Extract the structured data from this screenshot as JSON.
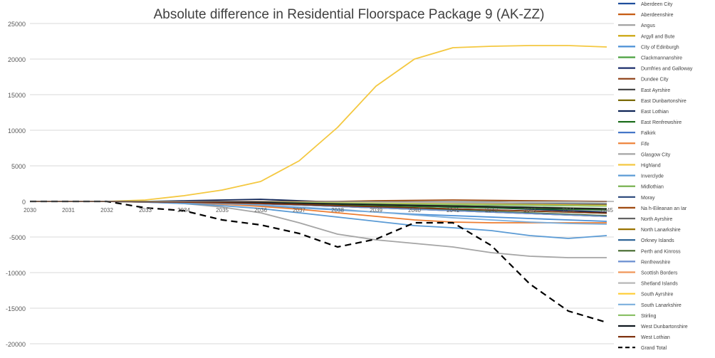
{
  "chart_data": {
    "type": "line",
    "title": "Absolute difference in Residential Floorspace Package 9 (AK-ZZ)",
    "xlabel": "",
    "ylabel": "",
    "x": [
      "2030",
      "2031",
      "2032",
      "2033",
      "2034",
      "2035",
      "2036",
      "2037",
      "2038",
      "2039",
      "2040",
      "2041",
      "2042",
      "2043",
      "2044",
      "2045"
    ],
    "ylim": [
      -20000,
      25000
    ],
    "yticks": [
      25000,
      20000,
      15000,
      10000,
      5000,
      0,
      -5000,
      -10000,
      -15000,
      -20000
    ],
    "grid": true,
    "legend_position": "right",
    "series": [
      {
        "name": "Aberdeen City",
        "color": "#1f4e9c",
        "values": [
          0,
          0,
          0,
          0,
          -100,
          -150,
          -200,
          -250,
          -300,
          -350,
          -400,
          -450,
          -500,
          -550,
          -600,
          -650
        ]
      },
      {
        "name": "Aberdeenshire",
        "color": "#c55a11",
        "values": [
          0,
          0,
          0,
          -50,
          -100,
          -150,
          -200,
          -300,
          -400,
          -500,
          -600,
          -700,
          -800,
          -900,
          -1000,
          -1100
        ]
      },
      {
        "name": "Angus",
        "color": "#9e9e9e",
        "values": [
          0,
          0,
          0,
          -30,
          -60,
          -100,
          -150,
          -200,
          -250,
          -300,
          -350,
          -400,
          -450,
          -500,
          -550,
          -600
        ]
      },
      {
        "name": "Argyll and Bute",
        "color": "#c9a000",
        "values": [
          0,
          0,
          0,
          0,
          -50,
          -100,
          -150,
          -200,
          -250,
          -300,
          -350,
          -400,
          -450,
          -500,
          -550,
          -600
        ]
      },
      {
        "name": "City of Edinburgh",
        "color": "#4a8fd6",
        "values": [
          0,
          0,
          0,
          -100,
          -200,
          -400,
          -600,
          -900,
          -1200,
          -1500,
          -1800,
          -2000,
          -2200,
          -2400,
          -2600,
          -2800
        ]
      },
      {
        "name": "Clackmannanshire",
        "color": "#4aa03f",
        "values": [
          0,
          0,
          0,
          0,
          -20,
          -40,
          -60,
          -80,
          -100,
          -120,
          -140,
          -160,
          -180,
          -200,
          -220,
          -240
        ]
      },
      {
        "name": "Dumfries and Galloway",
        "color": "#1b2d6b",
        "values": [
          0,
          0,
          0,
          -50,
          -100,
          -200,
          -300,
          -400,
          -500,
          -600,
          -700,
          -800,
          -900,
          -1000,
          -1100,
          -1200
        ]
      },
      {
        "name": "Dundee City",
        "color": "#8b3a0f",
        "values": [
          0,
          0,
          0,
          -50,
          -100,
          -150,
          -200,
          -300,
          -400,
          -500,
          -600,
          -700,
          -800,
          -900,
          -1000,
          -1100
        ]
      },
      {
        "name": "East Ayrshire",
        "color": "#3c3c3c",
        "values": [
          0,
          0,
          0,
          -20,
          -50,
          -80,
          -110,
          -140,
          -170,
          -200,
          -230,
          -260,
          -290,
          -320,
          -350,
          -380
        ]
      },
      {
        "name": "East Dunbartonshire",
        "color": "#7a6a00",
        "values": [
          0,
          0,
          0,
          -50,
          -100,
          -200,
          -300,
          -450,
          -600,
          -750,
          -900,
          -1050,
          -1200,
          -1350,
          -1500,
          -1650
        ]
      },
      {
        "name": "East Lothian",
        "color": "#0f2456",
        "values": [
          0,
          0,
          0,
          0,
          100,
          200,
          300,
          100,
          -100,
          -300,
          -500,
          -700,
          -900,
          -1100,
          -1300,
          -1500
        ]
      },
      {
        "name": "East Renfrewshire",
        "color": "#1e6e1e",
        "values": [
          0,
          0,
          0,
          -50,
          -100,
          -200,
          -300,
          -400,
          -500,
          -600,
          -700,
          -800,
          -900,
          -1000,
          -1100,
          -1200
        ]
      },
      {
        "name": "Falkirk",
        "color": "#3a6fc4",
        "values": [
          0,
          0,
          0,
          -50,
          -100,
          -200,
          -300,
          -500,
          -700,
          -900,
          -1100,
          -1300,
          -1500,
          -1700,
          -1900,
          -2100
        ]
      },
      {
        "name": "Fife",
        "color": "#ed7d31",
        "values": [
          0,
          0,
          0,
          -100,
          -200,
          -400,
          -700,
          -1100,
          -1600,
          -2100,
          -2600,
          -2900,
          -3000,
          -3000,
          -3000,
          -3000
        ]
      },
      {
        "name": "Glasgow City",
        "color": "#a5a5a5",
        "values": [
          0,
          0,
          0,
          -100,
          -300,
          -800,
          -1600,
          -3000,
          -4600,
          -5400,
          -5900,
          -6400,
          -7200,
          -7700,
          -7900,
          -7900
        ]
      },
      {
        "name": "Highland",
        "color": "#f4c840",
        "values": [
          0,
          0,
          0,
          200,
          800,
          1600,
          2800,
          5700,
          10400,
          16200,
          20000,
          21600,
          21800,
          21900,
          21900,
          21700
        ]
      },
      {
        "name": "Inverclyde",
        "color": "#5b9bd5",
        "values": [
          0,
          0,
          0,
          -100,
          -300,
          -600,
          -1000,
          -1600,
          -2200,
          -2800,
          -3400,
          -3700,
          -4100,
          -4800,
          -5200,
          -4800
        ]
      },
      {
        "name": "Midlothian",
        "color": "#70ad47",
        "values": [
          0,
          0,
          0,
          -30,
          -60,
          -100,
          -150,
          -200,
          -300,
          -400,
          -500,
          -600,
          -700,
          -800,
          -900,
          -1000
        ]
      },
      {
        "name": "Moray",
        "color": "#264478",
        "values": [
          0,
          0,
          0,
          -20,
          -40,
          -60,
          -80,
          -100,
          -120,
          -140,
          -160,
          -180,
          -200,
          -220,
          -240,
          -260
        ]
      },
      {
        "name": "Na h-Eileanan an Iar",
        "color": "#9e480e",
        "values": [
          0,
          0,
          0,
          0,
          0,
          0,
          0,
          0,
          0,
          100,
          150,
          200,
          150,
          100,
          50,
          0
        ]
      },
      {
        "name": "North Ayrshire",
        "color": "#636363",
        "values": [
          0,
          0,
          0,
          -30,
          -60,
          -100,
          -150,
          -250,
          -350,
          -450,
          -550,
          -650,
          -750,
          -850,
          -950,
          -1050
        ]
      },
      {
        "name": "North Lanarkshire",
        "color": "#997300",
        "values": [
          0,
          0,
          0,
          -50,
          -100,
          -200,
          -300,
          -500,
          -700,
          -900,
          -1100,
          -1300,
          -1500,
          -1700,
          -1900,
          -2100
        ]
      },
      {
        "name": "Orkney Islands",
        "color": "#255e91",
        "values": [
          0,
          0,
          0,
          0,
          -20,
          -40,
          -60,
          -80,
          -100,
          -120,
          -140,
          -160,
          -180,
          -200,
          -220,
          -240
        ]
      },
      {
        "name": "Perth and Kinross",
        "color": "#43682b",
        "values": [
          0,
          0,
          0,
          -50,
          -100,
          -200,
          -300,
          -400,
          -600,
          -800,
          -1000,
          -1200,
          -1400,
          -1600,
          -1800,
          -2000
        ]
      },
      {
        "name": "Renfrewshire",
        "color": "#698ed0",
        "values": [
          0,
          0,
          0,
          -50,
          -100,
          -200,
          -350,
          -500,
          -700,
          -900,
          -1100,
          -1300,
          -1500,
          -1700,
          -1900,
          -2100
        ]
      },
      {
        "name": "Scottish Borders",
        "color": "#f1975a",
        "values": [
          0,
          0,
          0,
          -30,
          -60,
          -100,
          -150,
          -250,
          -350,
          -450,
          -550,
          -650,
          -750,
          -850,
          -950,
          -1050
        ]
      },
      {
        "name": "Shetland Islands",
        "color": "#b7b7b7",
        "values": [
          0,
          0,
          0,
          0,
          -20,
          -40,
          -60,
          -80,
          -100,
          -120,
          -140,
          -160,
          -180,
          -200,
          -220,
          -240
        ]
      },
      {
        "name": "South Ayrshire",
        "color": "#ffcd33",
        "values": [
          0,
          0,
          0,
          -20,
          -40,
          -60,
          -100,
          -150,
          -200,
          -250,
          -300,
          -350,
          -400,
          -450,
          -500,
          -550
        ]
      },
      {
        "name": "South Lanarkshire",
        "color": "#7cafdd",
        "values": [
          0,
          0,
          0,
          -50,
          -150,
          -300,
          -500,
          -800,
          -1100,
          -1500,
          -1900,
          -2300,
          -2600,
          -2900,
          -3100,
          -3200
        ]
      },
      {
        "name": "Stirling",
        "color": "#8cc168",
        "values": [
          0,
          0,
          0,
          -20,
          -40,
          -80,
          -120,
          -180,
          -240,
          -300,
          -360,
          -420,
          -480,
          -540,
          -600,
          -660
        ]
      },
      {
        "name": "West Dunbartonshire",
        "color": "#101820",
        "values": [
          0,
          0,
          0,
          -30,
          -60,
          -100,
          -150,
          -250,
          -350,
          -450,
          -550,
          -650,
          -750,
          -850,
          -950,
          -1050
        ]
      },
      {
        "name": "West Lothian",
        "color": "#7f3310",
        "values": [
          0,
          0,
          0,
          -50,
          -100,
          -200,
          -300,
          -450,
          -600,
          -750,
          -900,
          -1050,
          -1200,
          -1350,
          -1500,
          -1650
        ]
      },
      {
        "name": "Grand Total",
        "color": "#000000",
        "dashed": true,
        "values": [
          0,
          0,
          0,
          -900,
          -1300,
          -2600,
          -3300,
          -4500,
          -6400,
          -5300,
          -3000,
          -3000,
          -6200,
          -11600,
          -15400,
          -17000
        ]
      }
    ]
  }
}
